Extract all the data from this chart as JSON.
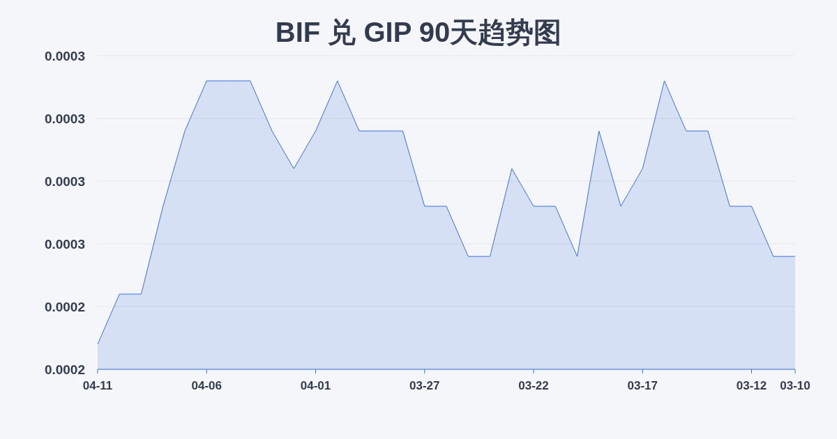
{
  "chart_data": {
    "type": "area",
    "title": "BIF 兑 GIP 90天趋势图",
    "categories": [
      "04-11",
      null,
      null,
      null,
      null,
      "04-06",
      null,
      null,
      null,
      null,
      "04-01",
      null,
      null,
      null,
      null,
      "03-27",
      null,
      null,
      null,
      null,
      "03-22",
      null,
      null,
      null,
      null,
      "03-17",
      null,
      null,
      null,
      null,
      "03-12",
      null,
      "03-10"
    ],
    "values": [
      0.000242,
      0.000246,
      0.000246,
      0.000253,
      0.000259,
      0.000263,
      0.000263,
      0.000263,
      0.000259,
      0.000256,
      0.000259,
      0.000263,
      0.000259,
      0.000259,
      0.000259,
      0.000253,
      0.000253,
      0.000249,
      0.000249,
      0.000256,
      0.000253,
      0.000253,
      0.000249,
      0.000259,
      0.000253,
      0.000256,
      0.000263,
      0.000259,
      0.000259,
      0.000253,
      0.000253,
      0.000249,
      0.000249
    ],
    "color": "#3a6fd8",
    "ylim": [
      0.00024,
      0.000265
    ],
    "yticks": [
      {
        "value": 0.00024,
        "label": "0.0002"
      },
      {
        "value": 0.000245,
        "label": "0.0002"
      },
      {
        "value": 0.00025,
        "label": "0.0003"
      },
      {
        "value": 0.000255,
        "label": "0.0003"
      },
      {
        "value": 0.00026,
        "label": "0.0003"
      },
      {
        "value": 0.000265,
        "label": "0.0003"
      }
    ],
    "grid": "y"
  }
}
